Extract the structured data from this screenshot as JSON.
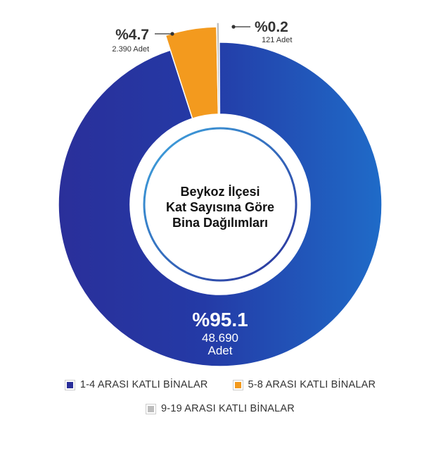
{
  "colors": {
    "blue_dark": "#2a2f9a",
    "blue_mid": "#1f64c2",
    "orange": "#f39a1e",
    "gray": "#bdbdbd",
    "inner_ring_light": "#3fa8e0",
    "inner_ring_dark": "#2a2f9a"
  },
  "chart_data": {
    "type": "pie",
    "title": "Beykoz İlçesi Kat Sayısına Göre Bina Dağılımları",
    "title_lines": [
      "Beykoz İlçesi",
      "Kat Sayısına Göre",
      "Bina Dağılımları"
    ],
    "slices": [
      {
        "name": "1-4 ARASI KATLI BİNALAR",
        "percent_label": "%95.1",
        "value": 48690,
        "count_label": "48.690",
        "unit_label": "Adet"
      },
      {
        "name": "5-8 ARASI KATLI BİNALAR",
        "percent_label": "%4.7",
        "value": 2390,
        "count_label": "2.390 Adet"
      },
      {
        "name": "9-19 ARASI KATLI BİNALAR",
        "percent_label": "%0.2",
        "value": 121,
        "count_label": "121 Adet"
      }
    ],
    "legend_position": "bottom"
  }
}
